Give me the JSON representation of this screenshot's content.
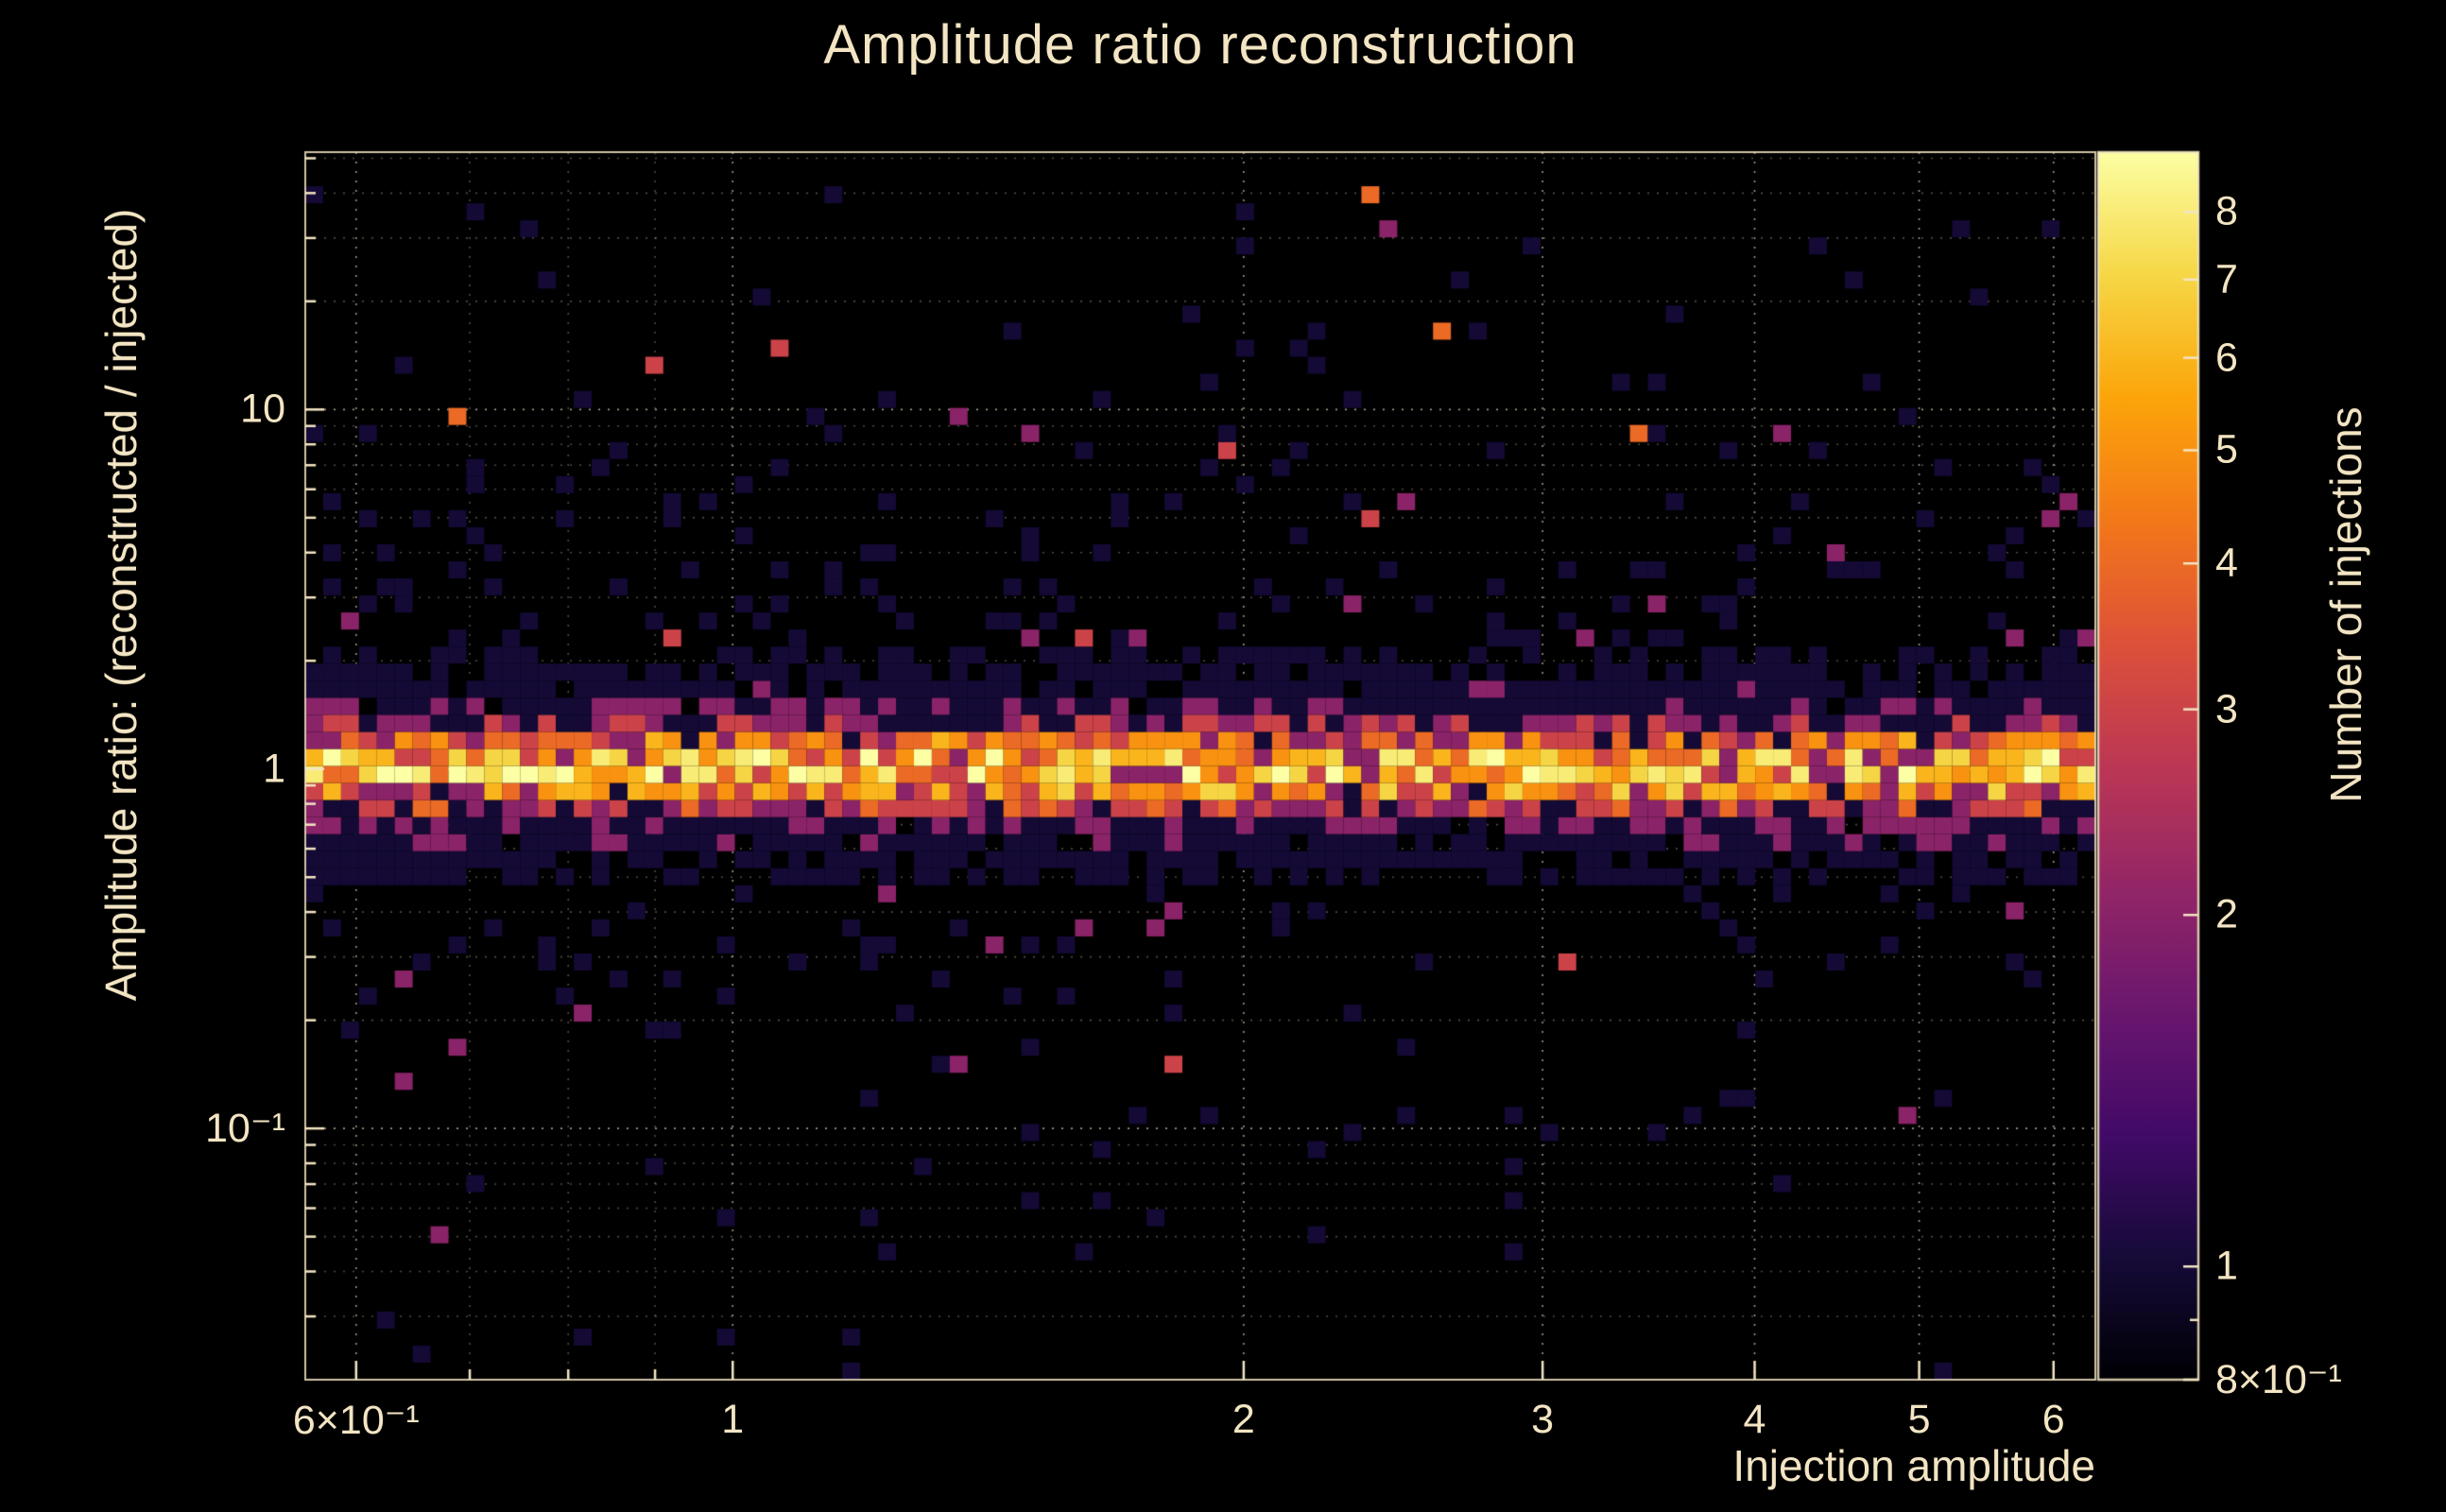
{
  "page": {
    "background": "#000000",
    "text_color": "#f3e5c3"
  },
  "chart_data": {
    "type": "heatmap",
    "title": "Amplitude ratio reconstruction",
    "xlabel": "Injection amplitude",
    "ylabel": "Amplitude ratio: (reconstructed / injected)",
    "colorbar_label": "Number of injections",
    "xscale": "log",
    "yscale": "log",
    "colorscale": "log",
    "xlim": [
      0.56,
      6.35
    ],
    "ylim": [
      0.02,
      52
    ],
    "colorlim": [
      0.8,
      9
    ],
    "x_bins": 100,
    "y_bins": 72,
    "x_ticks": [
      {
        "v": 0.6,
        "label": "6×10⁻¹"
      },
      {
        "v": 1,
        "label": "1"
      },
      {
        "v": 2,
        "label": "2"
      },
      {
        "v": 3,
        "label": "3"
      },
      {
        "v": 4,
        "label": "4"
      },
      {
        "v": 5,
        "label": "5"
      },
      {
        "v": 6,
        "label": "6"
      }
    ],
    "x_minor_ticks": [
      0.7,
      0.8,
      0.9
    ],
    "y_ticks": [
      {
        "v": 10,
        "label": "10"
      },
      {
        "v": 1,
        "label": "1"
      },
      {
        "v": 0.1,
        "label": "10⁻¹"
      }
    ],
    "y_minor_ticks": [
      0.03,
      0.04,
      0.05,
      0.06,
      0.07,
      0.08,
      0.09,
      0.2,
      0.3,
      0.4,
      0.5,
      0.6,
      0.7,
      0.8,
      0.9,
      2,
      3,
      4,
      5,
      6,
      7,
      8,
      9,
      20,
      30,
      40,
      50
    ],
    "colorbar_ticks": [
      {
        "v": 8,
        "label": "8"
      },
      {
        "v": 7,
        "label": "7"
      },
      {
        "v": 6,
        "label": "6"
      },
      {
        "v": 5,
        "label": "5"
      },
      {
        "v": 4,
        "label": "4"
      },
      {
        "v": 3,
        "label": "3"
      },
      {
        "v": 2,
        "label": "2"
      },
      {
        "v": 1,
        "label": "1"
      },
      {
        "v": 0.8,
        "label": "8×10⁻¹"
      }
    ],
    "colorbar_minor_ticks": [
      0.9
    ],
    "grid": {
      "style": "dotted",
      "color": "#f2e5c6"
    },
    "colormap": {
      "name": "inferno-like",
      "stops": [
        [
          0.0,
          "#000004"
        ],
        [
          0.1,
          "#160b39"
        ],
        [
          0.2,
          "#420a68"
        ],
        [
          0.3,
          "#6a176e"
        ],
        [
          0.4,
          "#932667"
        ],
        [
          0.5,
          "#bc3754"
        ],
        [
          0.6,
          "#dd513a"
        ],
        [
          0.7,
          "#f37819"
        ],
        [
          0.8,
          "#fca50a"
        ],
        [
          0.9,
          "#f6d746"
        ],
        [
          1.0,
          "#fcffa4"
        ]
      ]
    },
    "distribution": {
      "description": "2D log-log histogram of reconstructed/injected amplitude ratio vs injection amplitude. A dense horizontal band of counts ~3-9 sits at ratio ≈ 1 across all injection amplitudes (0.56-6.35), with a ragged purple fringe of counts 1-2 within ~±0.3 dex of the band, and sparse isolated cells (mostly count 1, occasionally 2-4) scattered from ratio ~0.03 up to ~50.",
      "seed": 73,
      "band_center": 1.0,
      "band_sigma_dex": 0.06,
      "band_peak_count": 5.5,
      "tail_amplitude": 2.2,
      "tail_sigma_dex": 0.2,
      "band_noise_min": 0.25,
      "band_noise_max": 1.3,
      "scatter_prob_up": 0.3,
      "scatter_decay_up_dex": 0.5,
      "scatter_prob_down": 0.22,
      "scatter_decay_down_dex": 0.38,
      "scatter_floor": 0.009,
      "extra_count_probs": [
        0.16,
        0.05,
        0.012
      ],
      "max_count": 9
    }
  }
}
